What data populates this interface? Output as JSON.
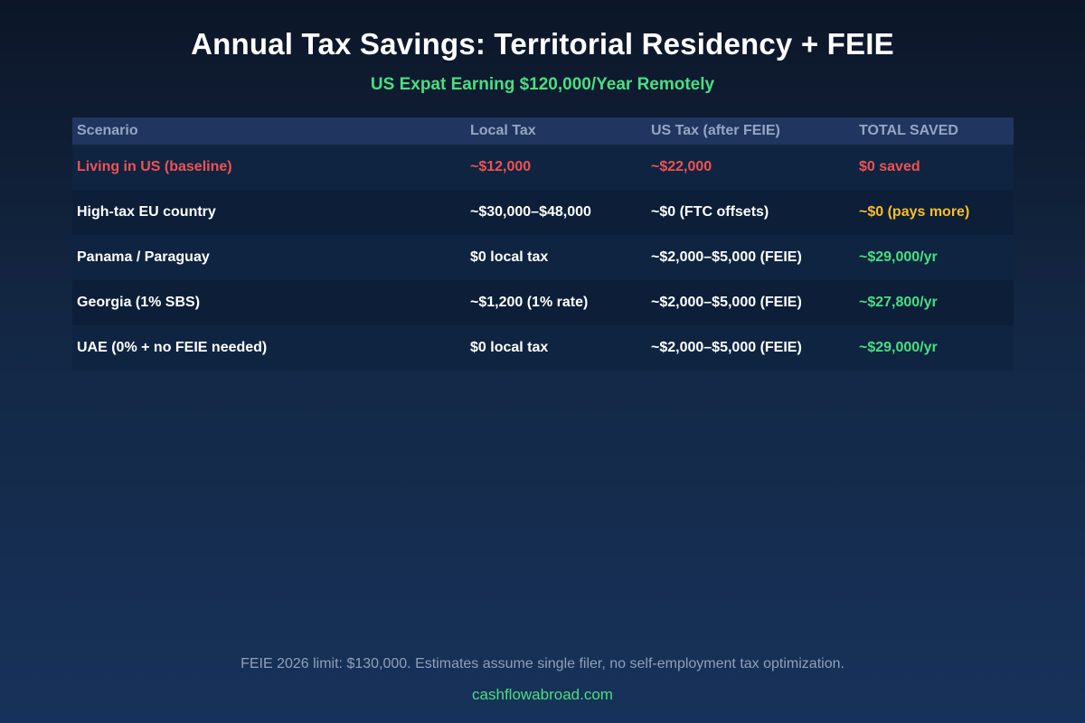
{
  "title": "Annual Tax Savings: Territorial Residency + FEIE",
  "subtitle": "US Expat Earning $120,000/Year Remotely",
  "colors": {
    "title": "#ffffff",
    "subtitle": "#4ade80",
    "header_text": "#94a6c2",
    "red": "#f05252",
    "amber": "#fbbf24",
    "green": "#4ade80",
    "white": "#ffffff",
    "footnote": "#8ea0bb"
  },
  "chart_data": {
    "type": "table",
    "title": "Annual Tax Savings: Territorial Residency + FEIE",
    "subtitle": "US Expat Earning $120,000/Year Remotely",
    "columns": [
      "Scenario",
      "Local Tax",
      "US Tax (after FEIE)",
      "TOTAL SAVED"
    ],
    "rows": [
      {
        "cells": [
          "Living in US (baseline)",
          "~$12,000",
          "~$22,000",
          "$0 saved"
        ],
        "colors": [
          "red",
          "red",
          "red",
          "red"
        ]
      },
      {
        "cells": [
          "High-tax EU country",
          "~$30,000–$48,000",
          "~$0 (FTC offsets)",
          "~$0 (pays more)"
        ],
        "colors": [
          "white",
          "white",
          "white",
          "amber"
        ]
      },
      {
        "cells": [
          "Panama / Paraguay",
          "$0 local tax",
          "~$2,000–$5,000 (FEIE)",
          "~$29,000/yr"
        ],
        "colors": [
          "white",
          "white",
          "white",
          "green"
        ]
      },
      {
        "cells": [
          "Georgia (1% SBS)",
          "~$1,200 (1% rate)",
          "~$2,000–$5,000 (FEIE)",
          "~$27,800/yr"
        ],
        "colors": [
          "white",
          "white",
          "white",
          "green"
        ]
      },
      {
        "cells": [
          "UAE (0% + no FEIE needed)",
          "$0 local tax",
          "~$2,000–$5,000 (FEIE)",
          "~$29,000/yr"
        ],
        "colors": [
          "white",
          "white",
          "white",
          "green"
        ]
      }
    ]
  },
  "footnote": "FEIE 2026 limit: $130,000. Estimates assume single filer, no self-employment tax optimization.",
  "source": "cashflowabroad.com"
}
